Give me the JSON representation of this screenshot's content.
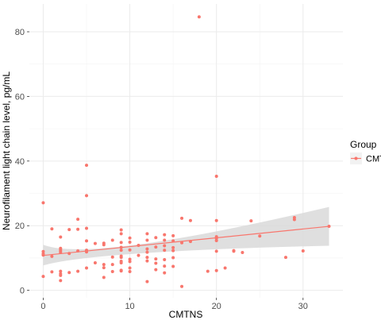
{
  "chart_data": {
    "type": "scatter",
    "xlabel": "CMTNS",
    "ylabel": "Neurofilament light chain level, pg/mL",
    "xlim": [
      -1.6,
      34.6
    ],
    "ylim": [
      -2.3,
      88.6
    ],
    "x_ticks": [
      0,
      10,
      20,
      30
    ],
    "y_ticks": [
      0,
      20,
      40,
      60,
      80
    ],
    "x_tick_labels": [
      "0",
      "10",
      "20",
      "30"
    ],
    "y_tick_labels": [
      "0",
      "20",
      "40",
      "60",
      "80"
    ],
    "grid": true,
    "legend_position": "right",
    "legend": {
      "title": "Group",
      "entries": [
        "CMT"
      ]
    },
    "colors": {
      "point": "#F8766D",
      "line": "#F8766D",
      "ribbon": "#d9d9d9",
      "panel": "#ffffff",
      "grid": "#ebebeb"
    },
    "series": [
      {
        "name": "CMT",
        "points": [
          [
            0,
            27.1
          ],
          [
            0,
            12.0
          ],
          [
            0,
            11.3
          ],
          [
            0,
            10.9
          ],
          [
            0,
            4.3
          ],
          [
            1,
            19.0
          ],
          [
            1,
            10.5
          ],
          [
            1,
            5.7
          ],
          [
            2,
            16.5
          ],
          [
            2,
            13.0
          ],
          [
            2,
            12.6
          ],
          [
            2,
            12.2
          ],
          [
            2,
            11.7
          ],
          [
            2,
            5.9
          ],
          [
            2,
            5.1
          ],
          [
            2,
            4.6
          ],
          [
            2,
            3.0
          ],
          [
            3,
            18.8
          ],
          [
            3,
            11.4
          ],
          [
            3,
            5.5
          ],
          [
            4,
            22.0
          ],
          [
            4,
            18.9
          ],
          [
            4,
            12.2
          ],
          [
            4,
            5.9
          ],
          [
            5,
            38.7
          ],
          [
            5,
            29.3
          ],
          [
            5,
            19.2
          ],
          [
            5,
            15.3
          ],
          [
            5,
            12.4
          ],
          [
            5,
            11.9
          ],
          [
            5,
            6.9
          ],
          [
            6,
            14.5
          ],
          [
            6,
            8.5
          ],
          [
            7,
            14.6
          ],
          [
            7,
            14.1
          ],
          [
            7,
            8.0
          ],
          [
            7,
            7.0
          ],
          [
            7,
            4.0
          ],
          [
            8,
            15.5
          ],
          [
            8,
            10.3
          ],
          [
            8,
            8.0
          ],
          [
            8,
            5.8
          ],
          [
            9,
            18.7
          ],
          [
            9,
            17.5
          ],
          [
            9,
            14.8
          ],
          [
            9,
            13.3
          ],
          [
            9,
            12.4
          ],
          [
            9,
            10.6
          ],
          [
            9,
            10.2
          ],
          [
            9,
            9.0
          ],
          [
            9,
            8.5
          ],
          [
            9,
            6.2
          ],
          [
            9,
            6.0
          ],
          [
            10,
            16.2
          ],
          [
            10,
            14.9
          ],
          [
            10,
            12.5
          ],
          [
            10,
            9.6
          ],
          [
            10,
            8.9
          ],
          [
            10,
            6.9
          ],
          [
            10,
            5.8
          ],
          [
            11,
            13.9
          ],
          [
            11,
            10.8
          ],
          [
            12,
            17.5
          ],
          [
            12,
            15.5
          ],
          [
            12,
            12.8
          ],
          [
            12,
            11.8
          ],
          [
            12,
            10.2
          ],
          [
            12,
            9.1
          ],
          [
            12,
            2.7
          ],
          [
            13,
            16.3
          ],
          [
            13,
            13.4
          ],
          [
            13,
            9.7
          ],
          [
            13,
            8.4
          ],
          [
            13,
            6.4
          ],
          [
            14,
            17.2
          ],
          [
            14,
            15.5
          ],
          [
            14,
            13.8
          ],
          [
            14,
            12.4
          ],
          [
            14,
            9.5
          ],
          [
            14,
            7.5
          ],
          [
            14,
            5.4
          ],
          [
            15,
            16.9
          ],
          [
            15,
            15.3
          ],
          [
            15,
            13.2
          ],
          [
            15,
            12.3
          ],
          [
            15,
            10.1
          ],
          [
            15,
            7.4
          ],
          [
            16,
            22.3
          ],
          [
            16,
            14.7
          ],
          [
            16,
            1.2
          ],
          [
            17,
            21.6
          ],
          [
            17,
            15.1
          ],
          [
            18,
            84.6
          ],
          [
            19,
            5.9
          ],
          [
            20,
            35.3
          ],
          [
            20,
            21.6
          ],
          [
            20,
            16.6
          ],
          [
            20,
            16.1
          ],
          [
            20,
            15.4
          ],
          [
            20,
            12.1
          ],
          [
            20,
            6.1
          ],
          [
            21,
            6.9
          ],
          [
            22,
            12.3
          ],
          [
            22,
            12.1
          ],
          [
            23,
            11.7
          ],
          [
            24,
            21.5
          ],
          [
            25,
            16.8
          ],
          [
            28,
            10.2
          ],
          [
            29,
            22.5
          ],
          [
            29,
            21.9
          ],
          [
            30,
            12.2
          ],
          [
            33,
            19.8
          ]
        ],
        "fit": {
          "x": [
            0,
            33
          ],
          "y": [
            10.8,
            19.8
          ]
        },
        "ribbon": {
          "x": [
            0,
            33
          ],
          "upper": [
            14.1,
            25.8
          ],
          "lower": [
            7.7,
            13.8
          ],
          "x_narrow": 11,
          "upper_narrow": 14.2,
          "lower_narrow": 11.4
        }
      }
    ]
  }
}
